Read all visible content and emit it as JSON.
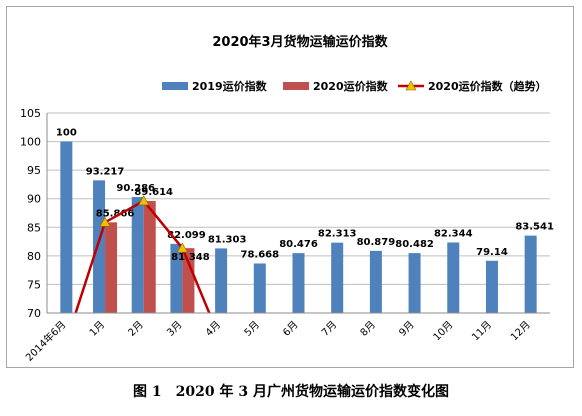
{
  "caption": "图 1　2020 年 3 月广州货物运输运价指数变化图",
  "chart_data": {
    "type": "bar",
    "title": "2020年3月货物运输运价指数",
    "categories": [
      "2014年6月",
      "1月",
      "2月",
      "3月",
      "4月",
      "5月",
      "6月",
      "7月",
      "8月",
      "9月",
      "10月",
      "11月",
      "12月"
    ],
    "series": [
      {
        "name": "2019运价指数",
        "type": "bar",
        "color": "#4f81bd",
        "values": [
          100,
          93.217,
          90.286,
          82.099,
          81.303,
          78.668,
          80.476,
          82.313,
          80.879,
          80.482,
          82.344,
          79.14,
          83.541
        ],
        "labels": [
          "100",
          "93.217",
          "90.286",
          "82.099",
          "81.303",
          "78.668",
          "80.476",
          "82.313",
          "80.879",
          "80.482",
          "82.344",
          "79.14",
          "83.541"
        ]
      },
      {
        "name": "2020运价指数",
        "type": "bar",
        "color": "#c0504d",
        "values": [
          null,
          85.866,
          89.614,
          81.348,
          null,
          null,
          null,
          null,
          null,
          null,
          null,
          null,
          null
        ],
        "labels": [
          null,
          "85.866",
          "89.614",
          "81.348",
          null,
          null,
          null,
          null,
          null,
          null,
          null,
          null,
          null
        ]
      },
      {
        "name": "2020运价指数（趋势）",
        "type": "line",
        "color": "#c00000",
        "marker_color": "#f0c000",
        "values": [
          65,
          85.866,
          89.614,
          81.348,
          65,
          null,
          null,
          null,
          null,
          null,
          null,
          null,
          null
        ]
      }
    ],
    "ylim": [
      70,
      105
    ],
    "yticks": [
      70,
      75,
      80,
      85,
      90,
      95,
      100,
      105
    ],
    "grid": true,
    "legend_position": "top"
  }
}
